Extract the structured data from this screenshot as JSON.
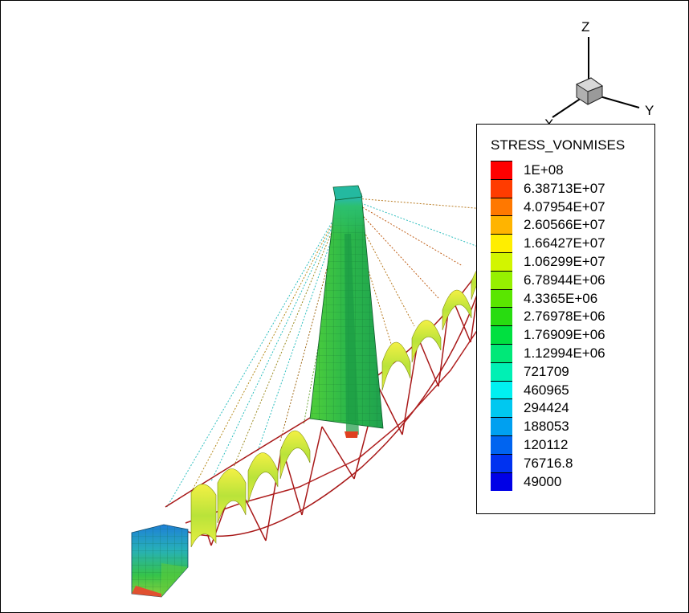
{
  "legend": {
    "title": "STRESS_VONMISES",
    "levels": [
      {
        "label": "1E+08",
        "color": "#ff0000"
      },
      {
        "label": "6.38713E+07",
        "color": "#ff3c00"
      },
      {
        "label": "4.07954E+07",
        "color": "#ff7800"
      },
      {
        "label": "2.60566E+07",
        "color": "#ffb400"
      },
      {
        "label": "1.66427E+07",
        "color": "#ffee00"
      },
      {
        "label": "1.06299E+07",
        "color": "#d2f500"
      },
      {
        "label": "6.78944E+06",
        "color": "#96f000"
      },
      {
        "label": "4.3365E+06",
        "color": "#5ae600"
      },
      {
        "label": "2.76978E+06",
        "color": "#28dc10"
      },
      {
        "label": "1.76909E+06",
        "color": "#00e040"
      },
      {
        "label": "1.12994E+06",
        "color": "#00e878"
      },
      {
        "label": "721709",
        "color": "#00f0b4"
      },
      {
        "label": "460965",
        "color": "#00f0f0"
      },
      {
        "label": "294424",
        "color": "#00c8f0"
      },
      {
        "label": "188053",
        "color": "#00a0f0"
      },
      {
        "label": "120112",
        "color": "#0064f0"
      },
      {
        "label": "76716.8",
        "color": "#0032f0"
      },
      {
        "label": "49000",
        "color": "#0000e6"
      }
    ]
  },
  "axes": {
    "x": "X",
    "y": "Y",
    "z": "Z"
  }
}
